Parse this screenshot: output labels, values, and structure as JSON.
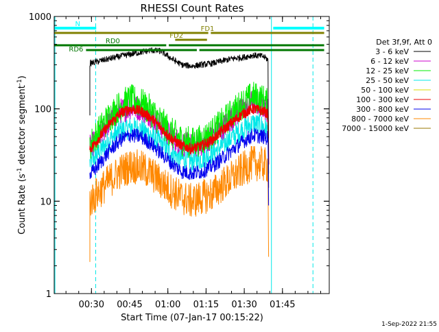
{
  "chart_data": {
    "type": "line",
    "title": "RHESSI Count Rates",
    "xlabel": "Start Time (07-Jan-17 00:15:22)",
    "ylabel": "Count Rate (s^-1 detector segment^-1)",
    "ylabel_parts": {
      "a": "Count Rate (s",
      "b": "-1",
      "c": " detector segment",
      "d": "-1",
      "e": ")"
    },
    "yscale": "log",
    "ylim": [
      1,
      1000
    ],
    "xlim_minutes_after_start": [
      0,
      108
    ],
    "y_tick_labels": [
      {
        "v": 1,
        "t": "1"
      },
      {
        "v": 10,
        "t": "10"
      },
      {
        "v": 100,
        "t": "100"
      },
      {
        "v": 1000,
        "t": "1000"
      }
    ],
    "x_ticks": [
      {
        "x": 14.63,
        "label": "00:30"
      },
      {
        "x": 29.63,
        "label": "00:45"
      },
      {
        "x": 44.63,
        "label": "01:00"
      },
      {
        "x": 59.63,
        "label": "01:15"
      },
      {
        "x": 74.63,
        "label": "01:30"
      },
      {
        "x": 89.63,
        "label": "01:45"
      }
    ],
    "legend_title": "Det 3f,9f, Att 0",
    "series": [
      {
        "name": "3 - 6 keV",
        "color": "#000000",
        "x": [
          14.0,
          18,
          22,
          26,
          30,
          34,
          38,
          42,
          46,
          50,
          54,
          58,
          62,
          66,
          70,
          74,
          78,
          82,
          84
        ],
        "y": [
          310,
          330,
          350,
          370,
          390,
          410,
          430,
          420,
          350,
          300,
          290,
          300,
          310,
          330,
          350,
          360,
          380,
          370,
          340
        ],
        "jitter": 0.05,
        "drop_end": 14
      },
      {
        "name": "6 - 12 keV",
        "color": "#cc00cc",
        "x": [
          14.0,
          18,
          22,
          26,
          30,
          34,
          38,
          42,
          46,
          50,
          54,
          58,
          62,
          66,
          70,
          74,
          78,
          82,
          84
        ],
        "y": [
          38,
          52,
          75,
          95,
          105,
          100,
          85,
          65,
          50,
          42,
          40,
          42,
          50,
          62,
          80,
          100,
          118,
          110,
          95
        ],
        "jitter": 0.2,
        "drop_end": 20
      },
      {
        "name": "12 - 25 keV",
        "color": "#00ee00",
        "x": [
          14.0,
          18,
          22,
          26,
          30,
          34,
          38,
          42,
          46,
          50,
          54,
          58,
          62,
          66,
          70,
          74,
          78,
          82,
          84
        ],
        "y": [
          40,
          60,
          85,
          110,
          125,
          115,
          95,
          72,
          55,
          46,
          43,
          46,
          55,
          70,
          90,
          115,
          135,
          125,
          110
        ],
        "jitter": 0.25,
        "drop_end": 20
      },
      {
        "name": "25 - 50 keV",
        "color": "#00e8e8",
        "x": [
          14.0,
          18,
          22,
          26,
          30,
          34,
          38,
          42,
          46,
          50,
          54,
          58,
          62,
          66,
          70,
          74,
          78,
          82,
          84
        ],
        "y": [
          26,
          35,
          47,
          58,
          63,
          60,
          52,
          42,
          34,
          29,
          27,
          29,
          33,
          40,
          50,
          60,
          70,
          65,
          58
        ],
        "jitter": 0.18,
        "drop_end": 10
      },
      {
        "name": "50 - 100 keV",
        "color": "#dddd00",
        "x": [],
        "y": []
      },
      {
        "name": "100 - 300 keV",
        "color": "#ee0000",
        "x": [
          14.0,
          18,
          22,
          26,
          30,
          34,
          38,
          42,
          46,
          50,
          54,
          58,
          62,
          66,
          70,
          74,
          78,
          82,
          84
        ],
        "y": [
          36,
          50,
          70,
          90,
          100,
          95,
          80,
          62,
          48,
          40,
          37,
          40,
          46,
          58,
          72,
          88,
          100,
          95,
          88
        ],
        "jitter": 0.08,
        "drop_end": 25
      },
      {
        "name": "300 - 800 keV",
        "color": "#0000ee",
        "x": [
          14.0,
          18,
          22,
          26,
          30,
          34,
          38,
          42,
          46,
          50,
          54,
          58,
          62,
          66,
          70,
          74,
          78,
          82,
          84
        ],
        "y": [
          19,
          26,
          36,
          46,
          52,
          50,
          42,
          33,
          26,
          21,
          20,
          21,
          24,
          29,
          36,
          44,
          52,
          50,
          48
        ],
        "jitter": 0.12,
        "drop_end": 9
      },
      {
        "name": "800 - 7000 keV",
        "color": "#ff8800",
        "x": [
          14.0,
          18,
          22,
          26,
          30,
          34,
          38,
          42,
          46,
          50,
          54,
          58,
          62,
          66,
          70,
          74,
          78,
          82,
          84
        ],
        "y": [
          10,
          13,
          17,
          21,
          24,
          23,
          20,
          16,
          13,
          11,
          10,
          11,
          12,
          15,
          18,
          22,
          26,
          25,
          24
        ],
        "jitter": 0.28,
        "drop_end": 2.5
      },
      {
        "name": "7000 - 15000 keV",
        "color": "#997700",
        "x": [],
        "y": []
      }
    ],
    "vertical_markers": [
      {
        "x": 0.3,
        "style": "solid",
        "color": "#00e8e8"
      },
      {
        "x": 16.3,
        "style": "dashed",
        "color": "#00e8e8"
      },
      {
        "x": 85.3,
        "style": "solid",
        "color": "#00e8e8"
      },
      {
        "x": 101.6,
        "style": "dashed",
        "color": "#00e8e8"
      }
    ],
    "state_bars": [
      {
        "label": "N",
        "color": "#00ffff",
        "segments": [
          [
            0,
            16.5
          ],
          [
            86,
            106
          ]
        ]
      },
      {
        "label": "FD1",
        "color": "#808000",
        "segments": [
          [
            0,
            60.5
          ],
          [
            61.5,
            106
          ]
        ]
      },
      {
        "label": "FD2",
        "color": "#808000",
        "segments": [
          [
            47.5,
            60
          ]
        ]
      },
      {
        "label": "RD0",
        "color": "#007700",
        "segments": [
          [
            0,
            44
          ],
          [
            45,
            106
          ]
        ]
      },
      {
        "label": "RD6",
        "color": "#007700",
        "segments": [
          [
            12.5,
            56
          ],
          [
            57,
            106
          ]
        ]
      }
    ],
    "grid": false,
    "legend_position": "right"
  },
  "timestamp": "1-Sep-2022 21:55"
}
